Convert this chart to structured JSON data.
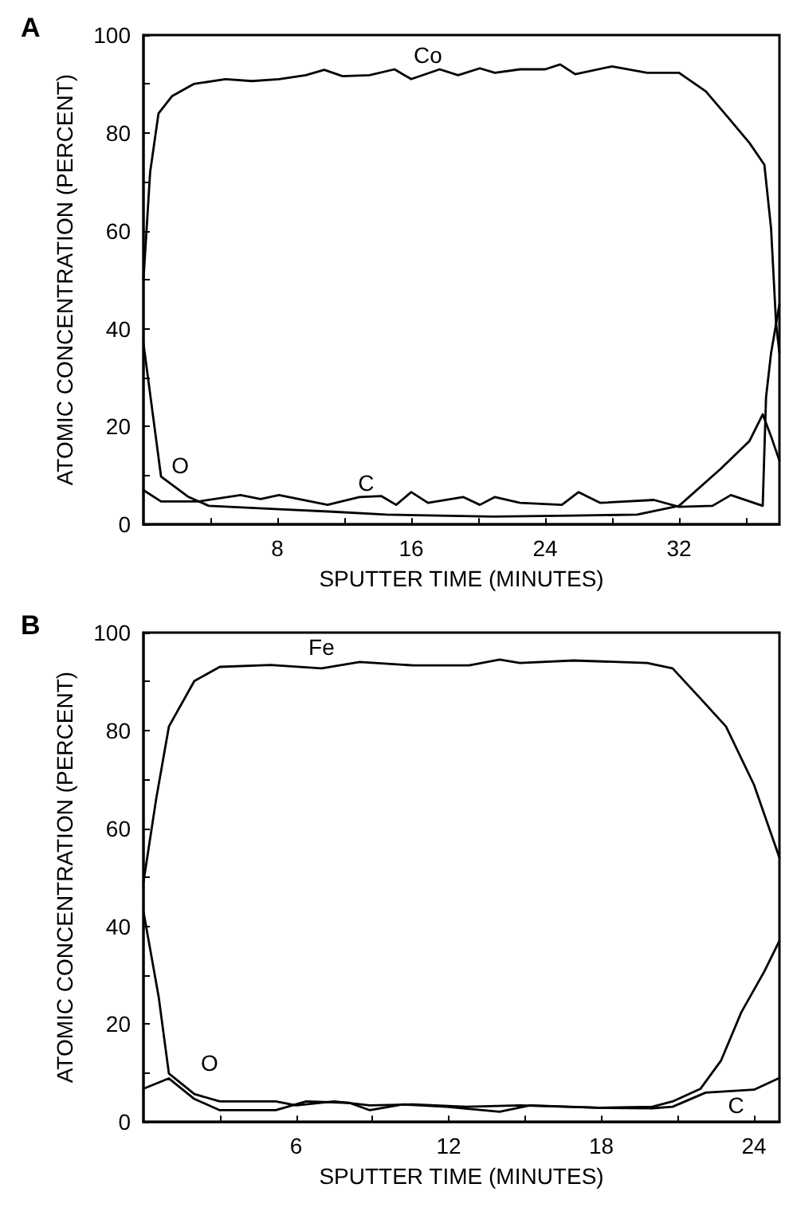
{
  "chart_data": [
    {
      "type": "line",
      "title": "A",
      "xlabel": "SPUTTER TIME (MINUTES)",
      "ylabel": "ATOMIC CONCENTRATION (PERCENT)",
      "xlim": [
        0,
        38
      ],
      "ylim": [
        0,
        100
      ],
      "xticks": [
        {
          "value": 4,
          "label": null
        },
        8,
        {
          "value": 12,
          "label": null
        },
        16,
        {
          "value": 20,
          "label": null
        },
        24,
        {
          "value": 28,
          "label": null
        },
        32,
        {
          "value": 36,
          "label": null
        }
      ],
      "yticks": [
        0,
        {
          "value": 10,
          "label": null
        },
        20,
        {
          "value": 30,
          "label": null
        },
        40,
        {
          "value": 50,
          "label": null
        },
        60,
        {
          "value": 70,
          "label": null
        },
        80,
        {
          "value": 90,
          "label": null
        },
        100
      ],
      "grid": false,
      "legend": false,
      "marker": "none",
      "line_style": "solid",
      "series": [
        {
          "name": "Co",
          "color": "#000000",
          "x": [
            0,
            0.4,
            0.9,
            1.7,
            3,
            4.9,
            6.5,
            8.1,
            9.7,
            10.8,
            11.9,
            13.5,
            15,
            16,
            17.7,
            18.8,
            20.1,
            21,
            22.5,
            24,
            24.9,
            25.8,
            28,
            30.1,
            32,
            33.6,
            34.9,
            36.2,
            37.1,
            37.5,
            37.8,
            38
          ],
          "values": [
            50,
            72,
            84,
            87.5,
            90,
            91,
            90.6,
            91,
            91.8,
            92.9,
            91.6,
            91.8,
            93,
            91,
            93,
            91.8,
            93.2,
            92.3,
            93,
            93,
            94,
            92,
            93.6,
            92.3,
            92.3,
            88.5,
            83.3,
            78,
            73.5,
            60.5,
            41,
            35
          ]
        },
        {
          "name": "O",
          "color": "#000000",
          "x": [
            0,
            1.05,
            2.65,
            3.9,
            8.1,
            11.3,
            14.5,
            20.9,
            25.7,
            29.5,
            32,
            34.5,
            36.2,
            37,
            37.5,
            38
          ],
          "values": [
            37,
            9.8,
            5.7,
            3.8,
            3.1,
            2.6,
            2,
            1.6,
            1.8,
            2,
            3.8,
            11.4,
            17,
            22.5,
            18,
            13
          ]
        },
        {
          "name": "C",
          "color": "#000000",
          "x": [
            0,
            1.05,
            3.3,
            5.8,
            7,
            8.1,
            11,
            12.9,
            14.2,
            15.1,
            16,
            17,
            19.1,
            20.1,
            21,
            22.5,
            25,
            26,
            27.3,
            30.5,
            32,
            34,
            35.1,
            37,
            37.2,
            37.5,
            38
          ],
          "values": [
            7,
            4.7,
            4.7,
            6,
            5.2,
            6,
            4,
            5.6,
            5.8,
            4,
            6.6,
            4.4,
            5.6,
            4,
            5.6,
            4.4,
            4,
            6.6,
            4.4,
            5,
            3.6,
            3.8,
            6,
            3.8,
            26,
            35,
            45
          ]
        }
      ]
    },
    {
      "type": "line",
      "title": "B",
      "xlabel": "SPUTTER TIME (MINUTES)",
      "ylabel": "ATOMIC CONCENTRATION (PERCENT)",
      "xlim": [
        0,
        25
      ],
      "ylim": [
        0,
        100
      ],
      "xticks": [
        {
          "value": 3,
          "label": null
        },
        6,
        {
          "value": 9,
          "label": null
        },
        12,
        {
          "value": 15,
          "label": null
        },
        18,
        {
          "value": 21,
          "label": null
        },
        24
      ],
      "yticks": [
        0,
        {
          "value": 10,
          "label": null
        },
        20,
        {
          "value": 30,
          "label": null
        },
        40,
        {
          "value": 50,
          "label": null
        },
        60,
        {
          "value": 70,
          "label": null
        },
        80,
        {
          "value": 90,
          "label": null
        },
        100
      ],
      "grid": false,
      "legend": false,
      "marker": "none",
      "line_style": "solid",
      "series": [
        {
          "name": "Fe",
          "color": "#000000",
          "x": [
            0,
            0.5,
            1,
            2,
            3,
            5,
            7,
            8.5,
            10.6,
            12.8,
            14,
            14.8,
            16.9,
            19.8,
            20.8,
            21.9,
            22.9,
            24,
            25
          ],
          "values": [
            49,
            66,
            80.8,
            90.1,
            93,
            93.4,
            92.7,
            94,
            93.3,
            93.3,
            94.5,
            93.8,
            94.3,
            93.8,
            92.7,
            86.5,
            80.8,
            68.9,
            54
          ]
        },
        {
          "name": "O",
          "color": "#000000",
          "x": [
            0,
            0.6,
            1,
            2,
            3,
            5.2,
            6,
            7.5,
            8.9,
            10.6,
            12.7,
            14.8,
            17.9,
            20,
            20.8,
            21.9,
            22.7,
            23.5,
            24.4,
            25
          ],
          "values": [
            43,
            25.5,
            9.9,
            5.7,
            4.2,
            4.2,
            3.4,
            4.2,
            3.4,
            3.6,
            3.1,
            3.4,
            2.9,
            3.1,
            4.2,
            6.8,
            12.5,
            22.4,
            30.7,
            37
          ]
        },
        {
          "name": "C",
          "color": "#000000",
          "x": [
            0,
            1,
            2,
            3,
            5.2,
            6.4,
            8.1,
            8.9,
            10.2,
            11.9,
            14,
            15.2,
            17.9,
            20,
            20.8,
            22.1,
            24,
            25
          ],
          "values": [
            6.8,
            8.9,
            4.7,
            2.4,
            2.4,
            4.2,
            3.9,
            2.4,
            3.6,
            3.1,
            2.1,
            3.4,
            2.9,
            2.8,
            3.1,
            6,
            6.6,
            9
          ]
        }
      ]
    }
  ]
}
